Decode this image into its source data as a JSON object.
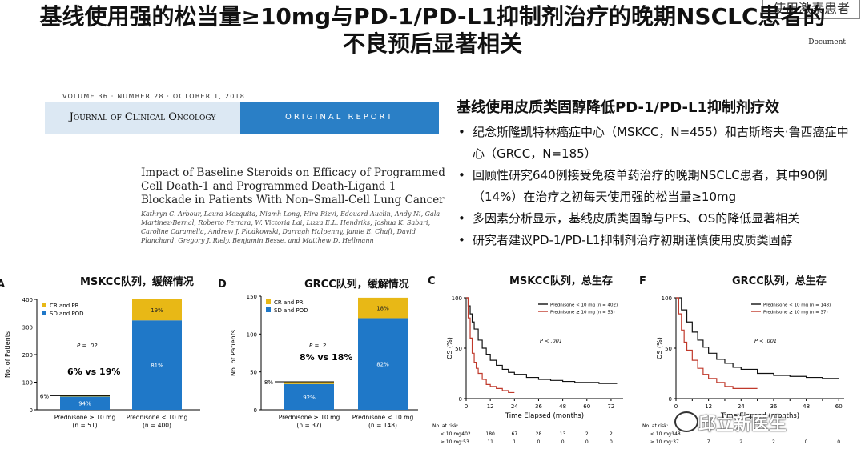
{
  "tag": "使用激素患者",
  "title": [
    "基线使用强的松当量≥10mg与PD-1/PD-L1抑制剂治疗的晚期NSCLC患者的",
    "不良预后显著相关"
  ],
  "doc_mark": "Document",
  "journal": {
    "volume_line": "VOLUME 36 · NUMBER 28 · OCTOBER 1, 2018",
    "name": "Journal of Clinical Oncology",
    "type": "ORIGINAL REPORT",
    "paper_title": "Impact of Baseline Steroids on Efficacy of Programmed Cell Death-1 and Programmed Death-Ligand 1 Blockade in Patients With Non–Small-Cell Lung Cancer",
    "authors": "Kathryn C. Arbour, Laura Mezquita, Niamh Long, Hira Rizvi, Edouard Auclin, Andy Ni, Gala Martinez-Bernal, Roberto Ferrara, W. Victoria Lai, Lizza E.L. Hendriks, Joshua K. Sabari, Caroline Caramella, Andrew J. Plodkowski, Darragh Halpenny, Jamie E. Chaft, David Planchard, Gregory J. Riely, Benjamin Besse, and Matthew D. Hellmann"
  },
  "summary": {
    "heading": "基线使用皮质类固醇降低PD-1/PD-L1抑制剂疗效",
    "bullets": [
      "纪念斯隆凯特林癌症中心（MSKCC，N=455）和古斯塔夫·鲁西癌症中心（GRCC，N=185）",
      "回顾性研究640例接受免疫单药治疗的晚期NSCLC患者，其中90例（14%）在治疗之初每天使用强的松当量≥10mg",
      "多因素分析显示，基线皮质类固醇与PFS、OS的降低显著相关",
      "研究者建议PD-1/PD-L1抑制剂治疗初期谨慎使用皮质类固醇"
    ]
  },
  "charts": {
    "a": {
      "letter": "A",
      "title": "MSKCC队列，缓解情况"
    },
    "d": {
      "letter": "D",
      "title": "GRCC队列，缓解情况"
    },
    "c": {
      "letter": "C",
      "title": "MSKCC队列，总生存"
    },
    "f": {
      "letter": "F",
      "title": "GRCC队列，总生存"
    }
  },
  "watermark": "邱立新医生",
  "chart_data": [
    {
      "id": "A",
      "type": "bar",
      "stacked": true,
      "categories": [
        "Prednisone ≥ 10 mg",
        "Prednisone < 10 mg"
      ],
      "category_n": [
        "(n = 51)",
        "(n = 400)"
      ],
      "totals": [
        51,
        400
      ],
      "series": [
        {
          "name": "SD and POD",
          "color": "#1f78c8",
          "values": [
            48,
            324
          ],
          "labels": [
            "94%",
            "81%"
          ]
        },
        {
          "name": "CR and PR",
          "color": "#e8b816",
          "values": [
            3,
            76
          ],
          "labels": [
            "6%",
            "19%"
          ]
        }
      ],
      "ylabel": "No. of Patients",
      "ylim": [
        0,
        400
      ],
      "yticks": [
        0,
        100,
        200,
        300,
        400
      ],
      "annotations": [
        "P = .02",
        "6% vs 19%"
      ]
    },
    {
      "id": "D",
      "type": "bar",
      "stacked": true,
      "categories": [
        "Prednisone ≥ 10 mg",
        "Prednisone < 10 mg"
      ],
      "category_n": [
        "(n = 37)",
        "(n = 148)"
      ],
      "totals": [
        37,
        148
      ],
      "series": [
        {
          "name": "SD and POD",
          "color": "#1f78c8",
          "values": [
            34,
            121
          ],
          "labels": [
            "92%",
            "82%"
          ]
        },
        {
          "name": "CR and PR",
          "color": "#e8b816",
          "values": [
            3,
            27
          ],
          "labels": [
            "8%",
            "18%"
          ]
        }
      ],
      "ylabel": "No. of Patients",
      "ylim": [
        0,
        150
      ],
      "yticks": [
        0,
        50,
        100,
        150
      ],
      "annotations": [
        "P = .2",
        "8% vs 18%"
      ]
    },
    {
      "id": "C",
      "type": "line",
      "xlabel": "Time Elapsed (months)",
      "ylabel": "OS (%)",
      "xlim": [
        0,
        78
      ],
      "xticks": [
        0,
        12,
        24,
        36,
        48,
        60,
        72
      ],
      "ylim": [
        0,
        100
      ],
      "yticks": [
        0,
        50,
        100
      ],
      "annotation": "P < .001",
      "series": [
        {
          "name": "Prednisone < 10 mg (n = 402)",
          "color": "#111111",
          "x": [
            0,
            1,
            2,
            3,
            4,
            6,
            8,
            10,
            12,
            15,
            18,
            21,
            24,
            30,
            36,
            42,
            48,
            54,
            60,
            66,
            72,
            75
          ],
          "y": [
            100,
            92,
            84,
            76,
            69,
            58,
            50,
            44,
            38,
            33,
            29,
            26,
            24,
            21,
            19,
            18,
            17,
            16,
            16,
            15,
            15,
            15
          ]
        },
        {
          "name": "Prednisone ≥ 10 mg (n = 53)",
          "color": "#c0392b",
          "x": [
            0,
            1,
            2,
            3,
            4,
            5,
            6,
            8,
            10,
            12,
            15,
            18,
            21,
            24
          ],
          "y": [
            100,
            80,
            60,
            45,
            36,
            30,
            25,
            19,
            14,
            12,
            10,
            8,
            6,
            6
          ]
        }
      ],
      "at_risk": {
        "label": "No. at risk:",
        "rows": [
          {
            "label": "< 10 mg:",
            "values": [
              "402",
              "180",
              "67",
              "28",
              "13",
              "2",
              "2"
            ]
          },
          {
            "label": "≥ 10 mg:",
            "values": [
              "53",
              "11",
              "1",
              "0",
              "0",
              "0",
              "0"
            ]
          }
        ]
      }
    },
    {
      "id": "F",
      "type": "line",
      "xlabel": "Time Elapsed (months)",
      "ylabel": "OS (%)",
      "xlim": [
        0,
        62
      ],
      "xticks": [
        0,
        6,
        12,
        18,
        24,
        30,
        36,
        42,
        48,
        54,
        60
      ],
      "ylim": [
        0,
        100
      ],
      "yticks": [
        0,
        50,
        100
      ],
      "xtick_labels": [
        "0",
        "",
        "12",
        "",
        "24",
        "",
        "36",
        "",
        "48",
        "",
        "60"
      ],
      "annotation": "P < .001",
      "series": [
        {
          "name": "Prednisone < 10 mg (n = 148)",
          "color": "#111111",
          "x": [
            0,
            2,
            4,
            6,
            8,
            10,
            12,
            15,
            18,
            21,
            24,
            30,
            36,
            42,
            48,
            54,
            58,
            60
          ],
          "y": [
            100,
            88,
            76,
            66,
            58,
            51,
            45,
            39,
            35,
            31,
            29,
            25,
            23,
            22,
            21,
            20,
            20,
            20
          ]
        },
        {
          "name": "Prednisone ≥ 10 mg (n = 37)",
          "color": "#c0392b",
          "x": [
            0,
            1,
            2,
            3,
            4,
            6,
            8,
            10,
            12,
            15,
            18,
            21,
            24,
            30
          ],
          "y": [
            100,
            84,
            68,
            56,
            48,
            38,
            30,
            24,
            20,
            16,
            12,
            10,
            10,
            10
          ]
        }
      ],
      "at_risk": {
        "label": "No. at risk:",
        "rows": [
          {
            "label": "< 10 mg:",
            "values": [
              "148",
              "",
              "",
              "",
              "",
              "",
              ""
            ]
          },
          {
            "label": "≥ 10 mg:",
            "values": [
              "37",
              "7",
              "2",
              "2",
              "0",
              "0",
              "0"
            ]
          }
        ]
      }
    }
  ]
}
